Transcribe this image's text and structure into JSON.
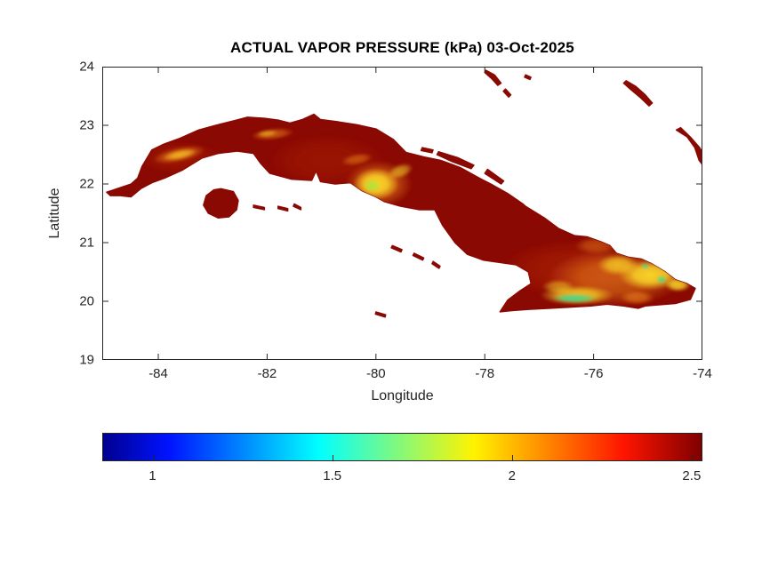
{
  "chart_data": {
    "type": "heatmap",
    "title": "ACTUAL VAPOR PRESSURE (kPa) 03-Oct-2025",
    "variable": "Actual vapor pressure",
    "units": "kPa",
    "date": "03-Oct-2025",
    "region": "Cuba",
    "xlabel": "Longitude",
    "ylabel": "Latitude",
    "xlim": [
      -85.03,
      -74.0
    ],
    "ylim": [
      19,
      24
    ],
    "x_ticks": [
      -84,
      -82,
      -80,
      -78,
      -76,
      -74
    ],
    "y_ticks": [
      24,
      23,
      22,
      21,
      20,
      19
    ],
    "grid": false,
    "values_summary": {
      "background_kpa": 2.5,
      "central_highlands_kpa": [
        1.7,
        2.2
      ],
      "eastern_highlands_kpa": [
        1.5,
        2.2
      ]
    },
    "colorbar": {
      "orientation": "horizontal",
      "min": 0.86,
      "max": 2.53,
      "ticks": [
        1,
        1.5,
        2,
        2.5
      ],
      "gradient_stops": [
        {
          "pos": 0,
          "color": "#00008F"
        },
        {
          "pos": 0.11,
          "color": "#0013FF"
        },
        {
          "pos": 0.36,
          "color": "#00FFFF"
        },
        {
          "pos": 0.62,
          "color": "#FFF300"
        },
        {
          "pos": 0.87,
          "color": "#FF1400"
        },
        {
          "pos": 1,
          "color": "#7E0000"
        }
      ]
    },
    "base_color": "#8B0903",
    "axis_color": "#252525",
    "anomaly_colors": {
      "yellow": "#FFE32A",
      "orange": "#FF9C1E",
      "green": "#3FD98F",
      "lime": "#A8E63C",
      "red2": "#E04810"
    },
    "land_polygons": [
      {
        "name": "cuba-mainland",
        "points": [
          [
            -84.95,
            21.86
          ],
          [
            -84.72,
            21.93
          ],
          [
            -84.5,
            22.0
          ],
          [
            -84.38,
            22.1
          ],
          [
            -84.3,
            22.3
          ],
          [
            -84.12,
            22.58
          ],
          [
            -83.9,
            22.68
          ],
          [
            -83.6,
            22.78
          ],
          [
            -83.26,
            22.92
          ],
          [
            -82.95,
            23.0
          ],
          [
            -82.6,
            23.08
          ],
          [
            -82.36,
            23.14
          ],
          [
            -82.05,
            23.12
          ],
          [
            -81.8,
            23.09
          ],
          [
            -81.58,
            23.04
          ],
          [
            -81.35,
            23.1
          ],
          [
            -81.14,
            23.19
          ],
          [
            -81.02,
            23.1
          ],
          [
            -80.7,
            23.06
          ],
          [
            -80.35,
            23.01
          ],
          [
            -80.0,
            22.94
          ],
          [
            -79.68,
            22.76
          ],
          [
            -79.45,
            22.54
          ],
          [
            -79.12,
            22.46
          ],
          [
            -78.8,
            22.4
          ],
          [
            -78.45,
            22.28
          ],
          [
            -78.1,
            22.1
          ],
          [
            -77.85,
            21.98
          ],
          [
            -77.58,
            21.84
          ],
          [
            -77.3,
            21.66
          ],
          [
            -77.25,
            21.62
          ],
          [
            -76.9,
            21.42
          ],
          [
            -76.64,
            21.24
          ],
          [
            -76.35,
            21.12
          ],
          [
            -76.12,
            21.1
          ],
          [
            -75.88,
            21.02
          ],
          [
            -75.7,
            20.95
          ],
          [
            -75.58,
            20.82
          ],
          [
            -75.35,
            20.75
          ],
          [
            -75.12,
            20.72
          ],
          [
            -74.93,
            20.64
          ],
          [
            -74.68,
            20.5
          ],
          [
            -74.5,
            20.37
          ],
          [
            -74.28,
            20.3
          ],
          [
            -74.13,
            20.22
          ],
          [
            -74.22,
            20.03
          ],
          [
            -74.5,
            19.96
          ],
          [
            -74.8,
            19.94
          ],
          [
            -75.05,
            19.92
          ],
          [
            -75.18,
            19.88
          ],
          [
            -75.45,
            19.92
          ],
          [
            -75.75,
            19.95
          ],
          [
            -76.05,
            19.92
          ],
          [
            -76.4,
            19.9
          ],
          [
            -76.8,
            19.88
          ],
          [
            -77.2,
            19.86
          ],
          [
            -77.5,
            19.84
          ],
          [
            -77.72,
            19.82
          ],
          [
            -77.58,
            20.02
          ],
          [
            -77.35,
            20.18
          ],
          [
            -77.15,
            20.3
          ],
          [
            -77.2,
            20.5
          ],
          [
            -77.42,
            20.62
          ],
          [
            -77.72,
            20.66
          ],
          [
            -78.02,
            20.7
          ],
          [
            -78.32,
            20.8
          ],
          [
            -78.55,
            21.0
          ],
          [
            -78.78,
            21.3
          ],
          [
            -78.92,
            21.56
          ],
          [
            -79.2,
            21.56
          ],
          [
            -79.55,
            21.62
          ],
          [
            -79.85,
            21.7
          ],
          [
            -80.0,
            21.78
          ],
          [
            -80.25,
            21.88
          ],
          [
            -80.47,
            22.02
          ],
          [
            -80.75,
            22.0
          ],
          [
            -81.02,
            22.04
          ],
          [
            -81.1,
            22.22
          ],
          [
            -81.18,
            22.06
          ],
          [
            -81.55,
            22.08
          ],
          [
            -81.95,
            22.18
          ],
          [
            -82.12,
            22.35
          ],
          [
            -82.25,
            22.52
          ],
          [
            -82.55,
            22.56
          ],
          [
            -82.9,
            22.52
          ],
          [
            -83.2,
            22.44
          ],
          [
            -83.55,
            22.24
          ],
          [
            -83.88,
            22.1
          ],
          [
            -84.12,
            22.02
          ],
          [
            -84.32,
            21.92
          ],
          [
            -84.5,
            21.78
          ],
          [
            -84.7,
            21.8
          ],
          [
            -84.88,
            21.8
          ]
        ]
      },
      {
        "name": "isla-de-la-juventud",
        "points": [
          [
            -82.85,
            21.92
          ],
          [
            -82.62,
            21.87
          ],
          [
            -82.53,
            21.72
          ],
          [
            -82.56,
            21.56
          ],
          [
            -82.7,
            21.44
          ],
          [
            -82.9,
            21.42
          ],
          [
            -83.08,
            21.5
          ],
          [
            -83.17,
            21.64
          ],
          [
            -83.12,
            21.8
          ],
          [
            -82.98,
            21.9
          ]
        ]
      },
      {
        "name": "cay-canarreos-1",
        "points": [
          [
            -82.25,
            21.64
          ],
          [
            -82.05,
            21.6
          ],
          [
            -82.05,
            21.56
          ],
          [
            -82.25,
            21.6
          ]
        ]
      },
      {
        "name": "cay-canarreos-2",
        "points": [
          [
            -81.8,
            21.62
          ],
          [
            -81.62,
            21.58
          ],
          [
            -81.62,
            21.54
          ],
          [
            -81.8,
            21.58
          ]
        ]
      },
      {
        "name": "cay-canarreos-3",
        "points": [
          [
            -81.5,
            21.66
          ],
          [
            -81.38,
            21.6
          ],
          [
            -81.38,
            21.56
          ],
          [
            -81.52,
            21.62
          ]
        ]
      },
      {
        "name": "cay-jardines-1",
        "points": [
          [
            -79.7,
            20.95
          ],
          [
            -79.52,
            20.88
          ],
          [
            -79.54,
            20.84
          ],
          [
            -79.72,
            20.91
          ]
        ]
      },
      {
        "name": "cay-jardines-2",
        "points": [
          [
            -79.3,
            20.82
          ],
          [
            -79.12,
            20.74
          ],
          [
            -79.14,
            20.7
          ],
          [
            -79.32,
            20.78
          ]
        ]
      },
      {
        "name": "cay-jardines-3",
        "points": [
          [
            -78.95,
            20.68
          ],
          [
            -78.82,
            20.6
          ],
          [
            -78.84,
            20.56
          ],
          [
            -78.97,
            20.64
          ]
        ]
      },
      {
        "name": "cay-coco-chain",
        "points": [
          [
            -78.85,
            22.55
          ],
          [
            -78.5,
            22.45
          ],
          [
            -78.2,
            22.32
          ],
          [
            -78.25,
            22.26
          ],
          [
            -78.6,
            22.38
          ],
          [
            -78.88,
            22.5
          ]
        ]
      },
      {
        "name": "cay-romano",
        "points": [
          [
            -77.95,
            22.25
          ],
          [
            -77.65,
            22.05
          ],
          [
            -77.7,
            22.0
          ],
          [
            -78.0,
            22.18
          ]
        ]
      },
      {
        "name": "cay-santa-maria",
        "points": [
          [
            -79.15,
            22.62
          ],
          [
            -78.95,
            22.58
          ],
          [
            -78.97,
            22.53
          ],
          [
            -79.17,
            22.57
          ]
        ]
      },
      {
        "name": "cayman-islets",
        "points": [
          [
            -80.0,
            19.82
          ],
          [
            -79.82,
            19.77
          ],
          [
            -79.83,
            19.73
          ],
          [
            -80.01,
            19.78
          ]
        ]
      },
      {
        "name": "bahamas-andros-south",
        "points": [
          [
            -77.98,
            23.94
          ],
          [
            -77.82,
            23.86
          ],
          [
            -77.7,
            23.72
          ],
          [
            -77.76,
            23.68
          ],
          [
            -77.88,
            23.8
          ],
          [
            -78.0,
            23.9
          ]
        ]
      },
      {
        "name": "bahamas-islet-1",
        "points": [
          [
            -77.62,
            23.62
          ],
          [
            -77.52,
            23.52
          ],
          [
            -77.56,
            23.48
          ],
          [
            -77.66,
            23.58
          ]
        ]
      },
      {
        "name": "bahamas-islet-2",
        "points": [
          [
            -77.25,
            23.86
          ],
          [
            -77.15,
            23.82
          ],
          [
            -77.17,
            23.78
          ],
          [
            -77.27,
            23.82
          ]
        ]
      },
      {
        "name": "bahamas-long-island",
        "points": [
          [
            -75.4,
            23.76
          ],
          [
            -75.22,
            23.66
          ],
          [
            -75.05,
            23.52
          ],
          [
            -74.92,
            23.38
          ],
          [
            -74.98,
            23.33
          ],
          [
            -75.15,
            23.48
          ],
          [
            -75.33,
            23.62
          ],
          [
            -75.45,
            23.72
          ]
        ]
      },
      {
        "name": "bahamas-crooked-acklins",
        "points": [
          [
            -74.48,
            22.92
          ],
          [
            -74.28,
            22.8
          ],
          [
            -74.14,
            22.62
          ],
          [
            -74.06,
            22.4
          ],
          [
            -73.94,
            22.26
          ],
          [
            -73.92,
            22.4
          ],
          [
            -74.05,
            22.62
          ],
          [
            -74.22,
            22.8
          ],
          [
            -74.4,
            22.96
          ]
        ]
      }
    ],
    "anomalies": [
      {
        "cx": -80.9,
        "cy": 22.4,
        "rx": 1.1,
        "ry": 0.45,
        "color": "red2",
        "opacity": 0.18,
        "rot": 0
      },
      {
        "cx": -83.6,
        "cy": 22.45,
        "rx": 0.8,
        "ry": 0.28,
        "color": "red2",
        "opacity": 0.18,
        "rot": 0
      },
      {
        "cx": -76.4,
        "cy": 20.55,
        "rx": 1.3,
        "ry": 0.5,
        "color": "red2",
        "opacity": 0.25,
        "rot": 0
      },
      {
        "cx": -79.95,
        "cy": 22.0,
        "rx": 0.62,
        "ry": 0.4,
        "color": "orange",
        "opacity": 0.55,
        "rot": 0
      },
      {
        "cx": -80.0,
        "cy": 22.0,
        "rx": 0.42,
        "ry": 0.27,
        "color": "yellow",
        "opacity": 0.9,
        "rot": 0
      },
      {
        "cx": -80.07,
        "cy": 21.97,
        "rx": 0.15,
        "ry": 0.1,
        "color": "lime",
        "opacity": 0.9,
        "rot": 0
      },
      {
        "cx": -79.55,
        "cy": 22.22,
        "rx": 0.24,
        "ry": 0.12,
        "color": "yellow",
        "opacity": 0.55,
        "rot": -20
      },
      {
        "cx": -80.35,
        "cy": 22.42,
        "rx": 0.3,
        "ry": 0.1,
        "color": "orange",
        "opacity": 0.45,
        "rot": -10
      },
      {
        "cx": -83.62,
        "cy": 22.5,
        "rx": 0.5,
        "ry": 0.13,
        "color": "orange",
        "opacity": 0.55,
        "rot": -12
      },
      {
        "cx": -83.6,
        "cy": 22.5,
        "rx": 0.32,
        "ry": 0.08,
        "color": "yellow",
        "opacity": 0.6,
        "rot": -12
      },
      {
        "cx": -81.9,
        "cy": 22.85,
        "rx": 0.4,
        "ry": 0.1,
        "color": "orange",
        "opacity": 0.5,
        "rot": -6
      },
      {
        "cx": -82.0,
        "cy": 22.86,
        "rx": 0.2,
        "ry": 0.06,
        "color": "yellow",
        "opacity": 0.45,
        "rot": -6
      },
      {
        "cx": -75.6,
        "cy": 20.4,
        "rx": 1.25,
        "ry": 0.5,
        "color": "orange",
        "opacity": 0.5,
        "rot": 0
      },
      {
        "cx": -74.95,
        "cy": 20.45,
        "rx": 0.6,
        "ry": 0.26,
        "color": "yellow",
        "opacity": 0.9,
        "rot": 0
      },
      {
        "cx": -75.55,
        "cy": 20.62,
        "rx": 0.38,
        "ry": 0.18,
        "color": "yellow",
        "opacity": 0.7,
        "rot": 0
      },
      {
        "cx": -76.3,
        "cy": 20.1,
        "rx": 0.68,
        "ry": 0.17,
        "color": "yellow",
        "opacity": 0.8,
        "rot": 0
      },
      {
        "cx": -76.35,
        "cy": 20.05,
        "rx": 0.42,
        "ry": 0.08,
        "color": "green",
        "opacity": 0.9,
        "rot": 0
      },
      {
        "cx": -74.75,
        "cy": 20.37,
        "rx": 0.1,
        "ry": 0.07,
        "color": "green",
        "opacity": 0.8,
        "rot": 0
      },
      {
        "cx": -75.05,
        "cy": 20.6,
        "rx": 0.08,
        "ry": 0.06,
        "color": "green",
        "opacity": 0.7,
        "rot": 0
      },
      {
        "cx": -74.45,
        "cy": 20.28,
        "rx": 0.24,
        "ry": 0.12,
        "color": "yellow",
        "opacity": 0.85,
        "rot": 0
      },
      {
        "cx": -75.2,
        "cy": 20.06,
        "rx": 0.32,
        "ry": 0.12,
        "color": "orange",
        "opacity": 0.5,
        "rot": 0
      },
      {
        "cx": -75.95,
        "cy": 20.95,
        "rx": 0.4,
        "ry": 0.15,
        "color": "orange",
        "opacity": 0.4,
        "rot": 0
      },
      {
        "cx": -76.65,
        "cy": 20.25,
        "rx": 0.3,
        "ry": 0.12,
        "color": "yellow",
        "opacity": 0.5,
        "rot": 0
      }
    ]
  }
}
